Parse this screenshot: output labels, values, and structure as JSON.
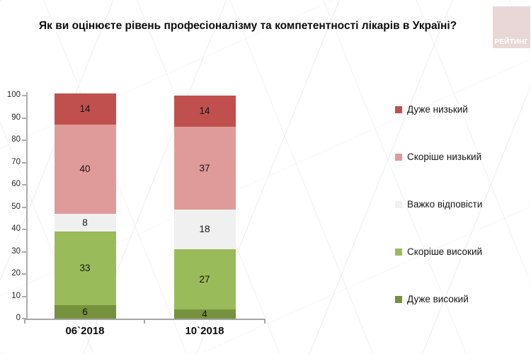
{
  "header": {
    "title": "Як ви оцінюєте рівень професіоналізму та компетентності лікарів в Україні?",
    "logo_text": "РЕЙТИНГ"
  },
  "chart_data": {
    "type": "bar",
    "stacked": true,
    "title": "Як ви оцінюєте рівень професіоналізму та компетентності лікарів в Україні?",
    "categories": [
      "06`2018",
      "10`2018"
    ],
    "series": [
      {
        "name": "Дуже низький",
        "color": "#C0504D",
        "values": [
          14,
          14
        ]
      },
      {
        "name": "Скоріше низький",
        "color": "#DF9B9A",
        "values": [
          40,
          37
        ]
      },
      {
        "name": "Важко відповісти",
        "color": "#F0F0F0",
        "values": [
          8,
          18
        ]
      },
      {
        "name": "Скоріше високий",
        "color": "#9ABB59",
        "values": [
          33,
          27
        ]
      },
      {
        "name": "Дуже високий",
        "color": "#76923C",
        "values": [
          6,
          4
        ]
      }
    ],
    "ylim": [
      0,
      100
    ],
    "yticks": [
      0,
      10,
      20,
      30,
      40,
      50,
      60,
      70,
      80,
      90,
      100
    ],
    "grid": false,
    "legend_position": "right",
    "colors": {
      "x_axis_line": "#A6A6A6",
      "y_axis_line": "#ADADAD",
      "logo_background": "#E9D7D7",
      "logo_text": "#FFFFFF"
    }
  }
}
